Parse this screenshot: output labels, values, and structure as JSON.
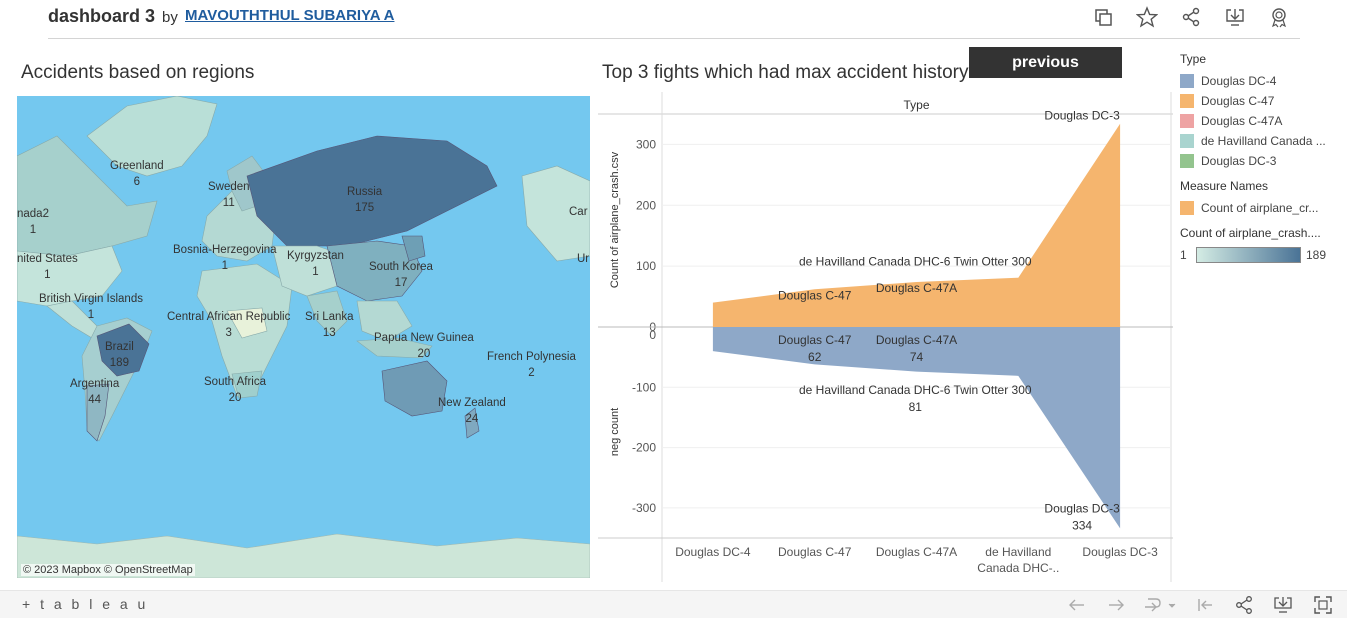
{
  "header": {
    "title": "dashboard 3",
    "by": "by",
    "author": "MAVOUTHTHUL SUBARIYA A",
    "icons": [
      "copy-icon",
      "star-icon",
      "share-icon",
      "download-icon",
      "badge-icon"
    ]
  },
  "map": {
    "title": "Accidents based on regions",
    "credit": "© 2023 Mapbox  © OpenStreetMap",
    "labels": [
      {
        "name": "Greenland",
        "value": "6"
      },
      {
        "name": "Sweden",
        "value": "11"
      },
      {
        "name": "Russia",
        "value": "175"
      },
      {
        "name": "nada2",
        "value": "1"
      },
      {
        "name": "Car",
        "value": ""
      },
      {
        "name": "Bosnia-Herzegovina",
        "value": "1"
      },
      {
        "name": "Kyrgyzstan",
        "value": "1"
      },
      {
        "name": "South Korea",
        "value": "17"
      },
      {
        "name": "nited States",
        "value": "1"
      },
      {
        "name": "Ur",
        "value": ""
      },
      {
        "name": "British Virgin Islands",
        "value": "1"
      },
      {
        "name": "Central African Republic",
        "value": "3"
      },
      {
        "name": "Sri Lanka",
        "value": "13"
      },
      {
        "name": "Papua New Guinea",
        "value": "20"
      },
      {
        "name": "Brazil",
        "value": "189"
      },
      {
        "name": "French Polynesia",
        "value": "2"
      },
      {
        "name": "Argentina",
        "value": "44"
      },
      {
        "name": "South Africa",
        "value": "20"
      },
      {
        "name": "New Zealand",
        "value": "24"
      }
    ]
  },
  "previous_label": "previous",
  "chart_data": {
    "type": "area",
    "title": "Top 3 fights which had max accident history",
    "column_header": "Type",
    "categories": [
      "Douglas DC-4",
      "Douglas C-47",
      "Douglas C-47A",
      "de Havilland Canada DHC-6 Twin Otter 300",
      "Douglas DC-3"
    ],
    "category_tick_labels": [
      "Douglas DC-4",
      "Douglas C-47",
      "Douglas C-47A",
      "de Havilland\nCanada DHC-..",
      "Douglas DC-3"
    ],
    "series": [
      {
        "name": "Count of airplane_crash.csv",
        "axis_label": "Count of airplane_crash.csv",
        "values": [
          40,
          62,
          74,
          81,
          334
        ],
        "color": "#f5b56e"
      },
      {
        "name": "neg count",
        "axis_label": "neg count",
        "values": [
          -40,
          -62,
          -74,
          -81,
          -334
        ],
        "color": "#8ea8c8"
      }
    ],
    "top_axis": {
      "ylim": [
        0,
        350
      ],
      "ticks": [
        "0",
        "100",
        "200",
        "300"
      ]
    },
    "bottom_axis": {
      "ylim": [
        -350,
        0
      ],
      "ticks": [
        "0",
        "-100",
        "-200",
        "-300"
      ]
    },
    "top_labels": [
      {
        "text": "Douglas DC-3",
        "index": 4,
        "value": 334
      },
      {
        "text": "de Havilland Canada DHC-6 Twin Otter 300",
        "index": 3,
        "value": 81
      },
      {
        "text": "Douglas C-47A",
        "index": 2,
        "value": 74
      },
      {
        "text": "Douglas C-47",
        "index": 1,
        "value": 62
      }
    ],
    "bottom_labels": [
      {
        "text": "Douglas C-47",
        "value_text": "62",
        "index": 1
      },
      {
        "text": "Douglas C-47A",
        "value_text": "74",
        "index": 2
      },
      {
        "text": "de Havilland Canada DHC-6 Twin Otter 300",
        "value_text": "81",
        "index": 3
      },
      {
        "text": "Douglas DC-3",
        "value_text": "334",
        "index": 4
      }
    ]
  },
  "legend": {
    "type_title": "Type",
    "type_items": [
      {
        "label": "Douglas DC-4",
        "color": "#8ea8c8"
      },
      {
        "label": "Douglas C-47",
        "color": "#f5b56e"
      },
      {
        "label": "Douglas C-47A",
        "color": "#eea3a3"
      },
      {
        "label": "de Havilland Canada ...",
        "color": "#a9d4cf"
      },
      {
        "label": "Douglas DC-3",
        "color": "#93c48e"
      }
    ],
    "measure_title": "Measure Names",
    "measure_items": [
      {
        "label": "Count of airplane_cr...",
        "color": "#f5b56e"
      }
    ],
    "gradient_title": "Count of airplane_crash....",
    "gradient_min": "1",
    "gradient_max": "189",
    "gradient_from": "#d4ece4",
    "gradient_to": "#4a7396"
  },
  "footer": {
    "logo": "+ t a b l e a u",
    "icons": [
      "undo-icon",
      "redo-icon",
      "revert-icon",
      "reset-icon",
      "share-icon",
      "download-icon",
      "fullscreen-icon"
    ]
  }
}
